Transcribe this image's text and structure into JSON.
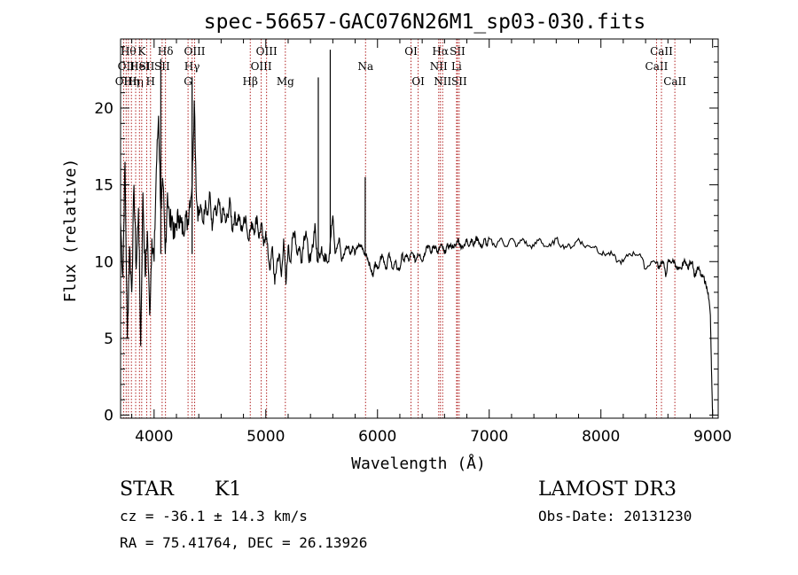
{
  "chart_data": {
    "type": "line",
    "title": "spec-56657-GAC076N26M1_sp03-030.fits",
    "xlabel": "Wavelength (Å)",
    "ylabel": "Flux (relative)",
    "xlim": [
      3700,
      9050
    ],
    "ylim": [
      -0.2,
      24.5
    ],
    "xticks": [
      "4000",
      "5000",
      "6000",
      "7000",
      "8000",
      "9000"
    ],
    "yticks": [
      "0",
      "5",
      "10",
      "15",
      "20"
    ],
    "grid": false,
    "series": [
      {
        "x": [
          3700,
          3720,
          3740,
          3760,
          3780,
          3800,
          3820,
          3840,
          3860,
          3880,
          3900,
          3920,
          3940,
          3960,
          3980,
          4000,
          4020,
          4040,
          4060,
          4080,
          4100,
          4120,
          4140,
          4160,
          4180,
          4200,
          4220,
          4240,
          4260,
          4280,
          4300,
          4320,
          4340,
          4360,
          4380,
          4400,
          4420,
          4440,
          4460,
          4480,
          4500,
          4520,
          4540,
          4560,
          4580,
          4600,
          4620,
          4640,
          4660,
          4680,
          4700,
          4720,
          4740,
          4760,
          4780,
          4800,
          4820,
          4840,
          4860,
          4880,
          4900,
          4920,
          4940,
          4960,
          4980,
          5000,
          5020,
          5040,
          5060,
          5080,
          5100,
          5120,
          5140,
          5160,
          5180,
          5200,
          5220,
          5240,
          5260,
          5280,
          5300,
          5320,
          5340,
          5360,
          5380,
          5400,
          5420,
          5440,
          5460,
          5480,
          5500,
          5520,
          5540,
          5560,
          5580,
          5600,
          5620,
          5640,
          5660,
          5680,
          5700,
          5720,
          5740,
          5760,
          5780,
          5800,
          5820,
          5840,
          5860,
          5880,
          5900,
          5920,
          5940,
          5960,
          5980,
          6000,
          6020,
          6040,
          6060,
          6080,
          6100,
          6120,
          6140,
          6160,
          6180,
          6200,
          6220,
          6240,
          6260,
          6280,
          6300,
          6320,
          6340,
          6360,
          6380,
          6400,
          6420,
          6440,
          6460,
          6480,
          6500,
          6520,
          6540,
          6560,
          6580,
          6600,
          6620,
          6640,
          6660,
          6680,
          6700,
          6720,
          6740,
          6760,
          6780,
          6800,
          6820,
          6840,
          6860,
          6880,
          6900,
          6920,
          6940,
          6960,
          6980,
          7000,
          7050,
          7100,
          7150,
          7200,
          7250,
          7300,
          7350,
          7400,
          7450,
          7500,
          7550,
          7600,
          7650,
          7700,
          7750,
          7800,
          7850,
          7900,
          7950,
          8000,
          8050,
          8100,
          8150,
          8200,
          8250,
          8300,
          8350,
          8400,
          8450,
          8500,
          8520,
          8540,
          8560,
          8580,
          8600,
          8620,
          8640,
          8660,
          8680,
          8700,
          8720,
          8740,
          8760,
          8780,
          8800,
          8820,
          8840,
          8860,
          8880,
          8900,
          8920,
          8940,
          8960,
          8980,
          8990,
          9000
        ],
        "y": [
          12.5,
          9.0,
          16.5,
          5.0,
          11.0,
          8.0,
          15.0,
          9.5,
          13.5,
          4.5,
          14.5,
          9.0,
          12.0,
          6.5,
          11.5,
          10.0,
          16.0,
          19.5,
          13.5,
          15.0,
          10.5,
          14.5,
          12.5,
          13.0,
          11.5,
          12.5,
          13.0,
          12.5,
          12.0,
          13.0,
          12.5,
          14.0,
          15.0,
          20.5,
          14.0,
          13.0,
          13.5,
          12.5,
          14.0,
          13.0,
          14.5,
          12.0,
          13.5,
          13.0,
          14.0,
          12.5,
          13.5,
          12.5,
          13.0,
          14.0,
          12.0,
          13.0,
          12.5,
          13.0,
          12.0,
          12.5,
          13.0,
          11.5,
          12.0,
          12.5,
          12.0,
          13.0,
          11.5,
          12.5,
          11.0,
          12.0,
          10.5,
          9.5,
          11.0,
          8.5,
          10.0,
          10.5,
          9.0,
          11.5,
          8.5,
          11.0,
          10.0,
          11.5,
          12.0,
          10.5,
          11.0,
          10.0,
          11.5,
          12.0,
          10.5,
          10.0,
          11.0,
          12.5,
          10.0,
          10.5,
          11.0,
          10.0,
          10.5,
          10.0,
          11.5,
          13.0,
          10.5,
          11.0,
          11.5,
          10.0,
          10.5,
          11.0,
          11.0,
          10.5,
          11.0,
          10.5,
          11.0,
          11.0,
          11.0,
          10.5,
          10.5,
          10.0,
          9.5,
          9.0,
          10.0,
          9.5,
          10.0,
          10.5,
          10.0,
          9.5,
          10.5,
          10.0,
          9.5,
          10.0,
          9.5,
          9.5,
          10.5,
          10.0,
          10.5,
          10.0,
          10.5,
          10.5,
          10.0,
          10.5,
          10.5,
          10.0,
          10.5,
          11.0,
          11.0,
          10.5,
          11.0,
          11.0,
          10.5,
          11.0,
          11.0,
          10.5,
          11.0,
          11.0,
          11.0,
          11.0,
          11.0,
          11.5,
          11.0,
          11.0,
          11.0,
          11.5,
          11.0,
          11.5,
          11.0,
          11.5,
          11.5,
          11.0,
          11.0,
          11.5,
          11.0,
          11.5,
          11.0,
          11.5,
          11.0,
          11.5,
          11.0,
          11.5,
          11.0,
          11.0,
          11.5,
          11.0,
          11.0,
          11.5,
          11.0,
          11.0,
          11.0,
          11.5,
          11.0,
          11.0,
          11.0,
          10.5,
          10.5,
          10.5,
          10.0,
          10.0,
          10.5,
          10.5,
          10.5,
          9.5,
          10.0,
          10.0,
          9.5,
          10.0,
          10.0,
          9.0,
          10.0,
          10.0,
          10.0,
          10.0,
          9.5,
          9.5,
          9.5,
          10.0,
          10.0,
          9.5,
          10.0,
          10.0,
          9.0,
          9.5,
          9.5,
          9.0,
          9.0,
          8.5,
          8.0,
          6.5,
          3.0,
          0.0
        ]
      }
    ],
    "spikes": [
      {
        "x": 4060,
        "y": 23.2
      },
      {
        "x": 4340,
        "y": 22.0
      },
      {
        "x": 5470,
        "y": 22.0
      },
      {
        "x": 5577,
        "y": 23.8
      },
      {
        "x": 5890,
        "y": 15.5
      }
    ],
    "line_markers": [
      {
        "x": 3727,
        "label": "OII",
        "row": 2
      },
      {
        "x": 3750,
        "label": "OII",
        "row": 1
      },
      {
        "x": 3770,
        "label": "Hθ",
        "row": 0
      },
      {
        "x": 3797,
        "label": "Hη",
        "row": 2
      },
      {
        "x": 3835,
        "label": "Hη",
        "row": 2
      },
      {
        "x": 3869,
        "label": "HeI",
        "row": 1
      },
      {
        "x": 3889,
        "label": "K",
        "row": 0
      },
      {
        "x": 3934,
        "label": "SII",
        "row": 1
      },
      {
        "x": 3968,
        "label": "H",
        "row": 2
      },
      {
        "x": 4072,
        "label": "SII",
        "row": 1
      },
      {
        "x": 4102,
        "label": "Hδ",
        "row": 0
      },
      {
        "x": 4304,
        "label": "G",
        "row": 2
      },
      {
        "x": 4340,
        "label": "Hγ",
        "row": 1
      },
      {
        "x": 4363,
        "label": "OIII",
        "row": 0
      },
      {
        "x": 4861,
        "label": "Hβ",
        "row": 2
      },
      {
        "x": 4959,
        "label": "OIII",
        "row": 1
      },
      {
        "x": 5007,
        "label": "OIII",
        "row": 0
      },
      {
        "x": 5175,
        "label": "Mg",
        "row": 2
      },
      {
        "x": 5893,
        "label": "Na",
        "row": 1
      },
      {
        "x": 6300,
        "label": "OI",
        "row": 0
      },
      {
        "x": 6364,
        "label": "OI",
        "row": 2
      },
      {
        "x": 6548,
        "label": "NII",
        "row": 1
      },
      {
        "x": 6563,
        "label": "Hα",
        "row": 0
      },
      {
        "x": 6583,
        "label": "NII",
        "row": 2
      },
      {
        "x": 6708,
        "label": "Li",
        "row": 1
      },
      {
        "x": 6716,
        "label": "SII",
        "row": 0
      },
      {
        "x": 6731,
        "label": "SII",
        "row": 2
      },
      {
        "x": 8498,
        "label": "CaII",
        "row": 1
      },
      {
        "x": 8542,
        "label": "CaII",
        "row": 0
      },
      {
        "x": 8662,
        "label": "CaII",
        "row": 2
      }
    ]
  },
  "info": {
    "class": "STAR",
    "subclass": "K1",
    "survey": "LAMOST DR3",
    "velocity": "cz = -36.1 ± 14.3 km/s",
    "obs_date": "Obs-Date: 20131230",
    "coords": "RA =  75.41764, DEC =  26.13926"
  }
}
